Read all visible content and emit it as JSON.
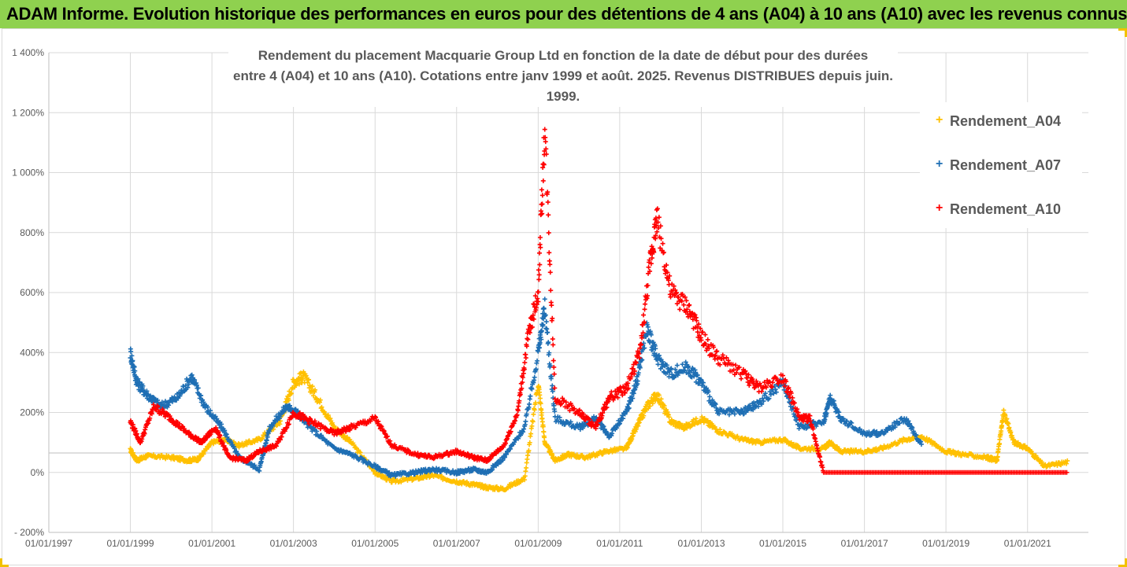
{
  "header": {
    "banner_title": "ADAM Informe. Evolution historique des performances en euros pour des détentions de 4 ans (A04) à 10 ans (A10) avec les revenus connus distribués"
  },
  "chart_data": {
    "type": "scatter",
    "title_line1": "Rendement du placement Macquarie Group Ltd en fonction de la date de début pour des durées",
    "title_line2": "entre 4 (A04) et 10 ans (A10). Cotations entre janv 1999 et août. 2025. Revenus DISTRIBUES depuis juin. 1999.",
    "xlabel": "",
    "ylabel": "",
    "x_range": [
      "1997-01-01",
      "2022-06-30"
    ],
    "ylim": [
      -200,
      1400
    ],
    "y_unit": "%",
    "grid": true,
    "legend_position": "top-right",
    "marker": "+",
    "y_ticks": [
      -200,
      0,
      200,
      400,
      600,
      800,
      1000,
      1200,
      1400
    ],
    "y_tick_labels": [
      "- 200%",
      "0%",
      "200%",
      "400%",
      "600%",
      "800%",
      "1 000%",
      "1 200%",
      "1 400%"
    ],
    "x_ticks": [
      "1997-01-01",
      "1999-01-01",
      "2001-01-01",
      "2003-01-01",
      "2005-01-01",
      "2007-01-01",
      "2009-01-01",
      "2011-01-01",
      "2013-01-01",
      "2015-01-01",
      "2017-01-01",
      "2019-01-01",
      "2021-01-01"
    ],
    "x_tick_labels": [
      "01/01/1997",
      "01/01/1999",
      "01/01/2001",
      "01/01/2003",
      "01/01/2005",
      "01/01/2007",
      "01/01/2009",
      "01/01/2011",
      "01/01/2013",
      "01/01/2015",
      "01/01/2017",
      "01/01/2019",
      "01/01/2021"
    ],
    "reference_line_y": 65,
    "series": [
      {
        "name": "Rendement_A04",
        "color": "#ffc000",
        "x": [
          "1999-01-01",
          "1999-03-01",
          "1999-06-01",
          "2000-01-01",
          "2000-06-01",
          "2000-09-01",
          "2001-01-01",
          "2001-05-01",
          "2001-09-01",
          "2002-03-01",
          "2002-09-01",
          "2003-01-01",
          "2003-04-01",
          "2003-08-01",
          "2004-01-01",
          "2004-06-01",
          "2005-01-01",
          "2005-06-01",
          "2006-01-01",
          "2006-06-01",
          "2007-01-01",
          "2007-06-01",
          "2007-10-01",
          "2008-03-01",
          "2008-09-01",
          "2009-01-01",
          "2009-03-01",
          "2009-06-01",
          "2009-10-01",
          "2010-03-01",
          "2010-09-01",
          "2011-03-01",
          "2011-06-01",
          "2011-09-01",
          "2011-12-01",
          "2012-04-01",
          "2012-08-01",
          "2013-01-01",
          "2013-06-01",
          "2014-01-01",
          "2014-06-01",
          "2015-01-01",
          "2015-06-01",
          "2016-01-01",
          "2016-03-01",
          "2016-06-01",
          "2017-01-01",
          "2017-06-01",
          "2018-01-01",
          "2018-06-01",
          "2019-01-01",
          "2019-06-01",
          "2020-01-01",
          "2020-04-01",
          "2020-06-01",
          "2020-09-01",
          "2021-01-01",
          "2021-06-01",
          "2022-01-01"
        ],
        "values": [
          75,
          40,
          55,
          50,
          40,
          45,
          100,
          110,
          90,
          110,
          170,
          300,
          320,
          250,
          150,
          100,
          0,
          -30,
          -20,
          -10,
          -30,
          -40,
          -50,
          -55,
          -20,
          300,
          100,
          40,
          60,
          50,
          70,
          80,
          150,
          220,
          260,
          170,
          150,
          180,
          140,
          110,
          100,
          110,
          80,
          80,
          100,
          70,
          70,
          80,
          110,
          120,
          70,
          60,
          50,
          40,
          200,
          100,
          80,
          20,
          35
        ]
      },
      {
        "name": "Rendement_A07",
        "color": "#1f6fb4",
        "x": [
          "1999-01-01",
          "1999-03-01",
          "1999-06-01",
          "1999-10-01",
          "2000-03-01",
          "2000-07-01",
          "2000-11-01",
          "2001-04-01",
          "2001-09-01",
          "2002-03-01",
          "2002-06-01",
          "2002-11-01",
          "2003-02-01",
          "2003-06-01",
          "2004-01-01",
          "2004-06-01",
          "2005-01-01",
          "2005-06-01",
          "2006-01-01",
          "2006-06-01",
          "2007-01-01",
          "2007-06-01",
          "2007-10-01",
          "2008-03-01",
          "2008-09-01",
          "2009-01-01",
          "2009-03-01",
          "2009-06-01",
          "2010-01-01",
          "2010-06-01",
          "2010-10-01",
          "2011-03-01",
          "2011-06-01",
          "2011-09-01",
          "2011-12-01",
          "2012-04-01",
          "2012-09-01",
          "2013-01-01",
          "2013-06-01",
          "2014-01-01",
          "2014-06-01",
          "2015-01-01",
          "2015-06-01",
          "2016-01-01",
          "2016-03-01",
          "2016-06-01",
          "2017-01-01",
          "2017-06-01",
          "2018-01-01",
          "2018-06-01"
        ],
        "values": [
          400,
          300,
          260,
          220,
          250,
          320,
          220,
          150,
          50,
          10,
          150,
          220,
          200,
          150,
          80,
          60,
          20,
          -10,
          0,
          10,
          0,
          10,
          0,
          50,
          150,
          400,
          550,
          180,
          150,
          180,
          120,
          200,
          300,
          480,
          380,
          330,
          350,
          300,
          200,
          200,
          230,
          300,
          150,
          170,
          250,
          180,
          130,
          130,
          180,
          90
        ]
      },
      {
        "name": "Rendement_A10",
        "color": "#ff0000",
        "x": [
          "1999-01-01",
          "1999-04-01",
          "1999-08-01",
          "2000-01-01",
          "2000-06-01",
          "2000-10-01",
          "2001-02-01",
          "2001-06-01",
          "2001-11-01",
          "2002-03-01",
          "2002-08-01",
          "2003-01-01",
          "2003-06-01",
          "2004-01-01",
          "2004-06-01",
          "2005-01-01",
          "2005-06-01",
          "2006-01-01",
          "2006-06-01",
          "2007-01-01",
          "2007-06-01",
          "2007-10-01",
          "2008-03-01",
          "2008-07-01",
          "2008-10-01",
          "2009-01-01",
          "2009-03-01",
          "2009-06-01",
          "2010-01-01",
          "2010-06-01",
          "2010-10-01",
          "2011-03-01",
          "2011-07-01",
          "2011-10-01",
          "2011-12-01",
          "2012-04-01",
          "2012-09-01",
          "2013-01-01",
          "2013-06-01",
          "2014-01-01",
          "2014-06-01",
          "2015-01-01",
          "2015-06-01",
          "2015-09-01",
          "2016-01-01",
          "2017-01-01",
          "2018-01-01",
          "2019-01-01",
          "2020-01-01",
          "2021-01-01",
          "2022-01-01"
        ],
        "values": [
          170,
          100,
          220,
          180,
          130,
          100,
          150,
          50,
          40,
          70,
          90,
          200,
          170,
          130,
          150,
          180,
          90,
          60,
          50,
          70,
          50,
          40,
          90,
          200,
          450,
          600,
          1150,
          250,
          200,
          150,
          250,
          280,
          400,
          700,
          850,
          600,
          550,
          450,
          380,
          330,
          280,
          320,
          180,
          180,
          0,
          0,
          0,
          0,
          0,
          0,
          0
        ]
      }
    ]
  }
}
